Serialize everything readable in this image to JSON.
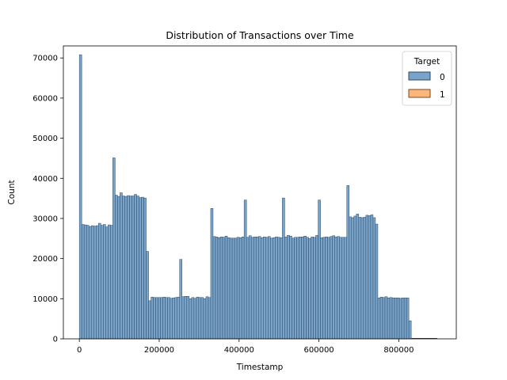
{
  "chart_data": {
    "type": "bar",
    "title": "Distribution of Transactions over Time",
    "xlabel": "Timestamp",
    "ylabel": "Count",
    "xlim": [
      -40000,
      944000
    ],
    "ylim": [
      0,
      73000
    ],
    "xticks": [
      0,
      200000,
      400000,
      600000,
      800000
    ],
    "xtick_labels": [
      "0",
      "200000",
      "400000",
      "600000",
      "800000"
    ],
    "yticks": [
      0,
      10000,
      20000,
      30000,
      40000,
      50000,
      60000,
      70000
    ],
    "ytick_labels": [
      "0",
      "10000",
      "20000",
      "30000",
      "40000",
      "50000",
      "60000",
      "70000"
    ],
    "grid": false,
    "legend": {
      "title": "Target",
      "placement": "top-right"
    },
    "bin_start": 0,
    "bin_width": 5980,
    "series": [
      {
        "name": "0",
        "color": "#79a3c8",
        "edge_color": "#2d4a66",
        "values": [
          70800,
          28500,
          28400,
          28300,
          28000,
          28200,
          28100,
          28200,
          28800,
          28300,
          28500,
          27900,
          28400,
          28300,
          45100,
          35800,
          35500,
          36400,
          35600,
          35500,
          35700,
          35600,
          35600,
          36000,
          35600,
          35200,
          35300,
          35100,
          21800,
          9500,
          10400,
          10300,
          10300,
          10300,
          10300,
          10400,
          10300,
          10300,
          10100,
          10200,
          10300,
          10400,
          19800,
          10500,
          10600,
          10600,
          10000,
          10300,
          10100,
          10400,
          10300,
          10300,
          10000,
          10500,
          10300,
          32500,
          25500,
          25400,
          25200,
          25400,
          25300,
          25600,
          25200,
          25100,
          25100,
          25100,
          25300,
          25200,
          25400,
          34600,
          25300,
          25700,
          25300,
          25400,
          25400,
          25500,
          25200,
          25400,
          25300,
          25500,
          25100,
          25200,
          25400,
          25300,
          25200,
          35100,
          25400,
          25800,
          25600,
          25100,
          25300,
          25300,
          25400,
          25400,
          25600,
          25300,
          25000,
          25400,
          25300,
          25800,
          34600,
          25200,
          25300,
          25400,
          25300,
          25500,
          25700,
          25400,
          25500,
          25300,
          25300,
          25300,
          38200,
          30400,
          30200,
          30600,
          31100,
          30300,
          30200,
          30300,
          30800,
          30700,
          30900,
          30200,
          28600,
          10200,
          10400,
          10300,
          10500,
          10200,
          10300,
          10200,
          10200,
          10200,
          10100,
          10200,
          10200,
          10200,
          4500
        ]
      },
      {
        "name": "1",
        "color": "#fcb57a",
        "edge_color": "#7a4a1e",
        "values": [
          0,
          0,
          0,
          0,
          0,
          0,
          0,
          0,
          0,
          0,
          0,
          0,
          0,
          0,
          0,
          0,
          0,
          0,
          0,
          0,
          0,
          0,
          0,
          0,
          0,
          0,
          0,
          0,
          0,
          0,
          0,
          0,
          0,
          0,
          0,
          0,
          0,
          0,
          0,
          0,
          0,
          0,
          0,
          0,
          0,
          0,
          0,
          0,
          0,
          0,
          0,
          0,
          0,
          0,
          0,
          0,
          0,
          0,
          0,
          0,
          0,
          0,
          0,
          0,
          0,
          0,
          0,
          0,
          0,
          0,
          0,
          0,
          0,
          0,
          0,
          0,
          0,
          0,
          0,
          0,
          0,
          0,
          0,
          0,
          0,
          0,
          0,
          0,
          0,
          0,
          0,
          0,
          0,
          0,
          0,
          0,
          0,
          0,
          0,
          0,
          0,
          0,
          0,
          0,
          0,
          0,
          0,
          0,
          0,
          0,
          0,
          0,
          0,
          0,
          0,
          0,
          0,
          0,
          0,
          0,
          0,
          0,
          0,
          0,
          0,
          0,
          0,
          0,
          0,
          0,
          0,
          0,
          0,
          0,
          0,
          0,
          0,
          0,
          0,
          0,
          0,
          0,
          0,
          0,
          0,
          0,
          0
        ]
      }
    ],
    "tail_line": {
      "x_end": 896000
    }
  }
}
